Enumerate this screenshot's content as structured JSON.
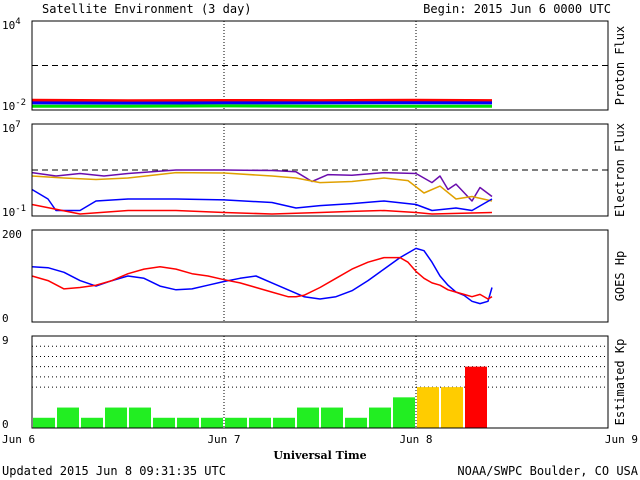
{
  "header": {
    "title": "Satellite Environment (3 day)",
    "begin": "Begin:  2015 Jun 6 0000 UTC"
  },
  "footer": {
    "updated": "Updated 2015 Jun  8 09:31:35 UTC",
    "credit": "NOAA/SWPC Boulder, CO USA"
  },
  "colors": {
    "red": "#ff0000",
    "blue": "#0000ff",
    "green": "#00e000",
    "orange": "#e0a000",
    "purple": "#6a0dad",
    "kp_green": "#22ee22",
    "kp_yellow": "#ffcc00",
    "kp_red": "#ff0000"
  },
  "chart_data": [
    {
      "type": "line",
      "panel": "proton",
      "ylabel": "Proton Flux",
      "yscale": "log",
      "ylim": [
        0.01,
        10000
      ],
      "ytick_labels": [
        {
          "base": "10",
          "exp": "4"
        },
        {
          "base": "10",
          "exp": "-2"
        }
      ],
      "threshold": 10,
      "x_unit": "hours since Jun 6 0000 UTC",
      "series": [
        {
          "color": "red",
          "points": [
            [
              0,
              0.045
            ],
            [
              12,
              0.042
            ],
            [
              24,
              0.044
            ],
            [
              36,
              0.043
            ],
            [
              48,
              0.045
            ],
            [
              57.5,
              0.043
            ]
          ]
        },
        {
          "color": "blue",
          "points": [
            [
              0,
              0.03
            ],
            [
              12,
              0.029
            ],
            [
              24,
              0.03
            ],
            [
              36,
              0.03
            ],
            [
              48,
              0.031
            ],
            [
              57.5,
              0.03
            ]
          ]
        },
        {
          "color": "green",
          "points": [
            [
              0,
              0.018
            ],
            [
              12,
              0.018
            ],
            [
              24,
              0.019
            ],
            [
              36,
              0.018
            ],
            [
              48,
              0.018
            ],
            [
              57.5,
              0.018
            ]
          ]
        }
      ]
    },
    {
      "type": "line",
      "panel": "electron",
      "ylabel": "Electron Flux",
      "yscale": "log",
      "ylim": [
        0.1,
        10000000
      ],
      "ytick_labels": [
        {
          "base": "10",
          "exp": "7"
        },
        {
          "base": "10",
          "exp": "-1"
        }
      ],
      "threshold": 1000,
      "series": [
        {
          "color": "purple",
          "points": [
            [
              0,
              600
            ],
            [
              3,
              300
            ],
            [
              6,
              500
            ],
            [
              9,
              300
            ],
            [
              12,
              500
            ],
            [
              18,
              1000
            ],
            [
              24,
              1000
            ],
            [
              30,
              900
            ],
            [
              33,
              700
            ],
            [
              35,
              100
            ],
            [
              37,
              400
            ],
            [
              40,
              350
            ],
            [
              44,
              600
            ],
            [
              48,
              500
            ],
            [
              50,
              80
            ],
            [
              51,
              300
            ],
            [
              52,
              20
            ],
            [
              53,
              60
            ],
            [
              55,
              2
            ],
            [
              56,
              30
            ],
            [
              57.5,
              5
            ]
          ]
        },
        {
          "color": "orange",
          "points": [
            [
              0,
              300
            ],
            [
              4,
              200
            ],
            [
              8,
              150
            ],
            [
              12,
              200
            ],
            [
              18,
              600
            ],
            [
              24,
              550
            ],
            [
              30,
              300
            ],
            [
              33,
              200
            ],
            [
              36,
              80
            ],
            [
              40,
              100
            ],
            [
              44,
              200
            ],
            [
              47,
              120
            ],
            [
              49,
              10
            ],
            [
              51,
              40
            ],
            [
              53,
              3
            ],
            [
              55,
              5
            ],
            [
              57.5,
              2
            ]
          ]
        },
        {
          "color": "blue",
          "points": [
            [
              0,
              20
            ],
            [
              2,
              3
            ],
            [
              3,
              0.3
            ],
            [
              6,
              0.3
            ],
            [
              8,
              2
            ],
            [
              12,
              3
            ],
            [
              18,
              3
            ],
            [
              24,
              2.5
            ],
            [
              30,
              1.5
            ],
            [
              33,
              0.5
            ],
            [
              36,
              0.8
            ],
            [
              40,
              1.2
            ],
            [
              44,
              2
            ],
            [
              48,
              1
            ],
            [
              50,
              0.3
            ],
            [
              53,
              0.5
            ],
            [
              55,
              0.3
            ],
            [
              57.5,
              3
            ]
          ]
        },
        {
          "color": "red",
          "points": [
            [
              0,
              1
            ],
            [
              6,
              0.15
            ],
            [
              12,
              0.3
            ],
            [
              18,
              0.3
            ],
            [
              24,
              0.2
            ],
            [
              30,
              0.15
            ],
            [
              36,
              0.2
            ],
            [
              40,
              0.25
            ],
            [
              44,
              0.3
            ],
            [
              48,
              0.2
            ],
            [
              50,
              0.15
            ],
            [
              57.5,
              0.2
            ]
          ]
        }
      ]
    },
    {
      "type": "line",
      "panel": "hp",
      "ylabel": "GOES Hp",
      "yscale": "linear",
      "ylim": [
        0,
        200
      ],
      "ytick_labels": [
        "200",
        "0"
      ],
      "series": [
        {
          "color": "blue",
          "points": [
            [
              0,
              120
            ],
            [
              2,
              118
            ],
            [
              4,
              108
            ],
            [
              6,
              90
            ],
            [
              8,
              78
            ],
            [
              10,
              90
            ],
            [
              12,
              100
            ],
            [
              14,
              95
            ],
            [
              16,
              78
            ],
            [
              18,
              70
            ],
            [
              20,
              72
            ],
            [
              22,
              80
            ],
            [
              24,
              88
            ],
            [
              26,
              95
            ],
            [
              28,
              100
            ],
            [
              30,
              85
            ],
            [
              32,
              70
            ],
            [
              34,
              55
            ],
            [
              36,
              50
            ],
            [
              38,
              55
            ],
            [
              40,
              68
            ],
            [
              42,
              90
            ],
            [
              44,
              115
            ],
            [
              46,
              140
            ],
            [
              47,
              150
            ],
            [
              48,
              160
            ],
            [
              49,
              155
            ],
            [
              50,
              130
            ],
            [
              51,
              100
            ],
            [
              52,
              80
            ],
            [
              53,
              65
            ],
            [
              54,
              58
            ],
            [
              55,
              45
            ],
            [
              56,
              40
            ],
            [
              57,
              45
            ],
            [
              57.5,
              75
            ]
          ]
        },
        {
          "color": "red",
          "points": [
            [
              0,
              100
            ],
            [
              2,
              90
            ],
            [
              4,
              72
            ],
            [
              6,
              75
            ],
            [
              8,
              80
            ],
            [
              10,
              90
            ],
            [
              12,
              105
            ],
            [
              14,
              115
            ],
            [
              16,
              120
            ],
            [
              18,
              115
            ],
            [
              20,
              105
            ],
            [
              22,
              100
            ],
            [
              24,
              92
            ],
            [
              26,
              85
            ],
            [
              28,
              75
            ],
            [
              30,
              65
            ],
            [
              32,
              55
            ],
            [
              33,
              55
            ],
            [
              34,
              58
            ],
            [
              36,
              75
            ],
            [
              38,
              95
            ],
            [
              40,
              115
            ],
            [
              42,
              130
            ],
            [
              44,
              140
            ],
            [
              46,
              140
            ],
            [
              47,
              130
            ],
            [
              48,
              110
            ],
            [
              49,
              95
            ],
            [
              50,
              85
            ],
            [
              51,
              80
            ],
            [
              52,
              70
            ],
            [
              53,
              65
            ],
            [
              54,
              60
            ],
            [
              55,
              55
            ],
            [
              56,
              60
            ],
            [
              57,
              50
            ],
            [
              57.5,
              55
            ]
          ]
        }
      ]
    },
    {
      "type": "bar",
      "panel": "kp",
      "ylabel": "Estimated Kp",
      "ylim": [
        0,
        9
      ],
      "ytick_labels": [
        "9",
        "0"
      ],
      "bar_width_hours": 3,
      "values": [
        1,
        2,
        1,
        2,
        2,
        1,
        1,
        1,
        1,
        1,
        1,
        2,
        2,
        1,
        2,
        3,
        4,
        4,
        6
      ],
      "bar_colors": [
        "kp_green",
        "kp_green",
        "kp_green",
        "kp_green",
        "kp_green",
        "kp_green",
        "kp_green",
        "kp_green",
        "kp_green",
        "kp_green",
        "kp_green",
        "kp_green",
        "kp_green",
        "kp_green",
        "kp_green",
        "kp_green",
        "kp_yellow",
        "kp_yellow",
        "kp_red"
      ]
    }
  ],
  "x_axis": {
    "label": "Universal Time",
    "range_hours": [
      0,
      72
    ],
    "ticks": [
      {
        "hour": 0,
        "label": "Jun 6"
      },
      {
        "hour": 24,
        "label": "Jun 7"
      },
      {
        "hour": 48,
        "label": "Jun 8"
      },
      {
        "hour": 72,
        "label": "Jun 9"
      }
    ]
  }
}
